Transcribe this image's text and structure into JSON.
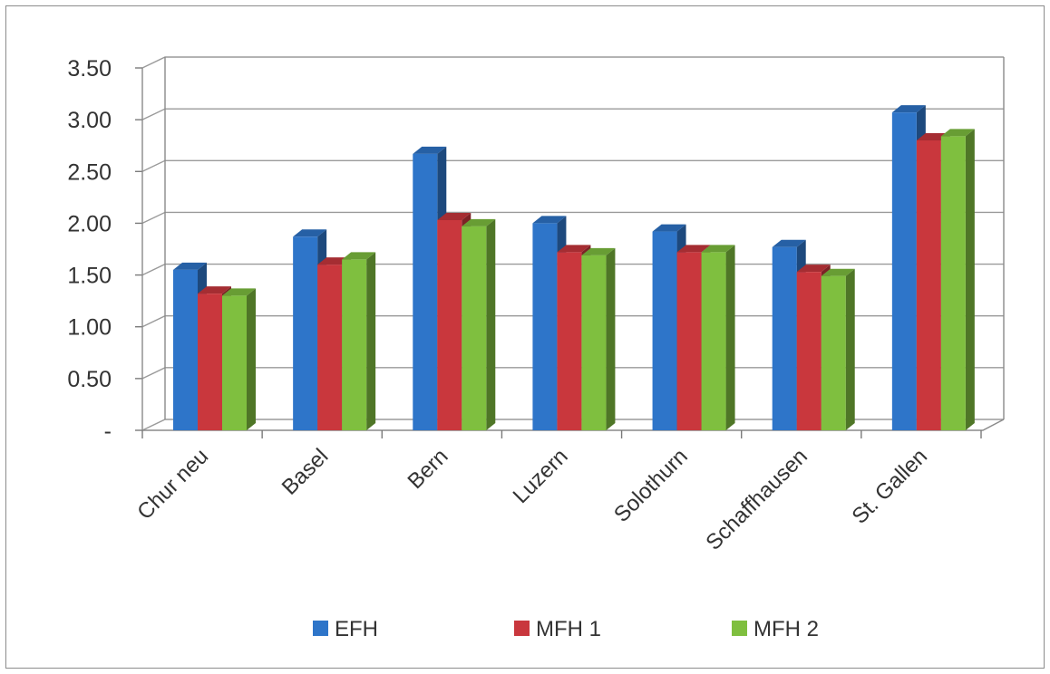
{
  "chart_data": {
    "type": "bar",
    "title": "",
    "xlabel": "",
    "ylabel": "",
    "categories": [
      "Chur neu",
      "Basel",
      "Bern",
      "Luzern",
      "Solothurn",
      "Schaffhausen",
      "St. Gallen"
    ],
    "series": [
      {
        "name": "EFH",
        "color": "#2e75c9",
        "values": [
          1.55,
          1.87,
          2.67,
          2.0,
          1.92,
          1.77,
          3.07
        ]
      },
      {
        "name": "MFH 1",
        "color": "#c9373d",
        "values": [
          1.32,
          1.6,
          2.03,
          1.72,
          1.72,
          1.53,
          2.8
        ]
      },
      {
        "name": "MFH 2",
        "color": "#7fbf3f",
        "values": [
          1.3,
          1.65,
          1.97,
          1.69,
          1.72,
          1.49,
          2.84
        ]
      }
    ],
    "ylim": [
      0,
      3.5
    ],
    "yticks": [
      "-",
      "0.50",
      "1.00",
      "1.50",
      "2.00",
      "2.50",
      "3.00",
      "3.50"
    ],
    "grid": true,
    "legend_position": "bottom",
    "style": "3d-clustered-column"
  }
}
